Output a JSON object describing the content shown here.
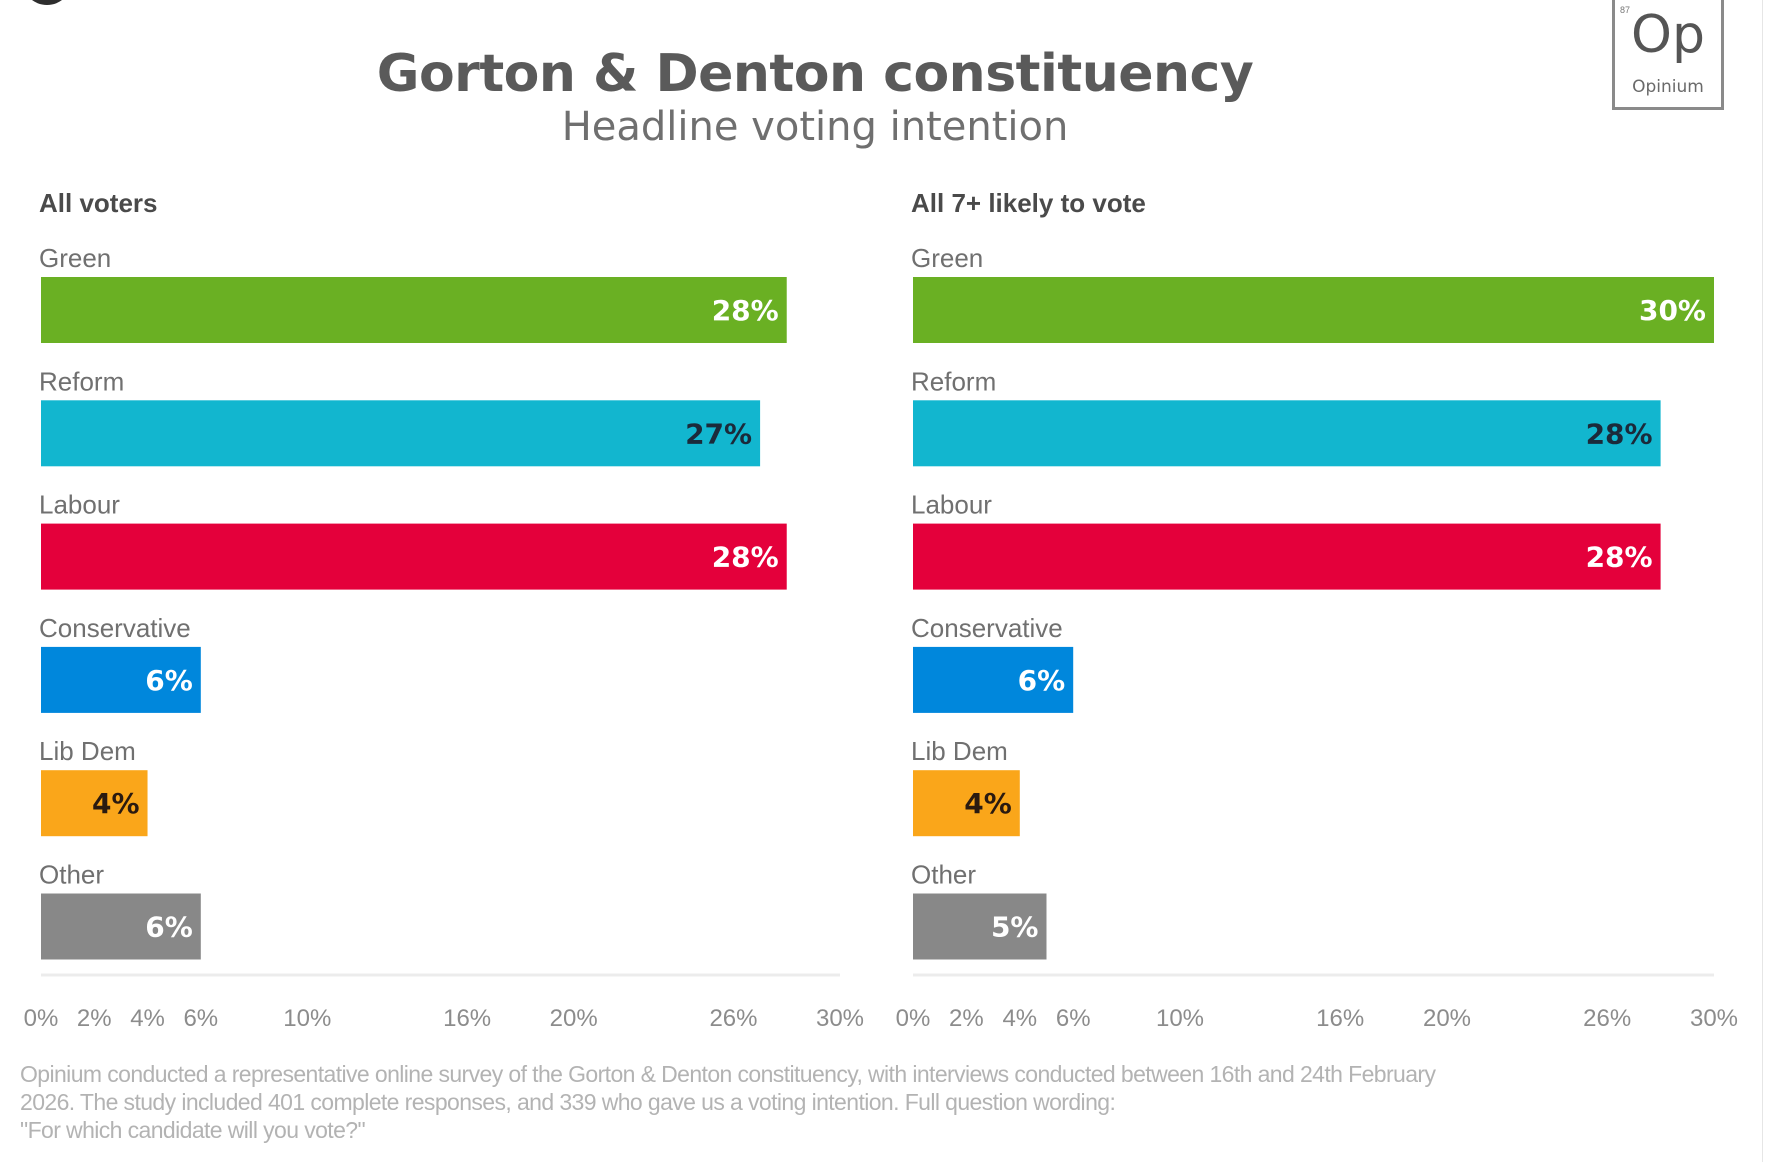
{
  "header": {
    "title": "Gorton & Denton constituency",
    "subtitle": "Headline voting intention"
  },
  "logo": {
    "mark": "Op",
    "name": "Opinium",
    "number": "87"
  },
  "footnote": {
    "lines": [
      "Opinium conducted a representative online survey of the Gorton & Denton constituency, with interviews conducted between 16th and 24th February",
      "2026. The study included 401 complete responses, and 339 who gave us a voting intention. Full question wording:",
      "\"For which candidate will you vote?\""
    ]
  },
  "chart_data": [
    {
      "type": "bar",
      "orientation": "horizontal",
      "title": "All voters",
      "categories": [
        "Green",
        "Reform",
        "Labour",
        "Conservative",
        "Lib Dem",
        "Other"
      ],
      "values": [
        28,
        27,
        28,
        6,
        4,
        6
      ],
      "value_labels": [
        "28%",
        "27%",
        "28%",
        "6%",
        "4%",
        "6%"
      ],
      "colors": [
        "#6ab023",
        "#12b6cf",
        "#e4003b",
        "#0087dc",
        "#faa61a",
        "#888888"
      ],
      "label_colors": [
        "#ffffff",
        "#1b2a3a",
        "#ffffff",
        "#ffffff",
        "#2a1a10",
        "#ffffff"
      ],
      "xlim": [
        0,
        30
      ],
      "xticks": [
        0,
        2,
        4,
        6,
        10,
        16,
        20,
        26,
        30
      ],
      "xtick_labels": [
        "0%",
        "2%",
        "4%",
        "6%",
        "10%",
        "16%",
        "20%",
        "26%",
        "30%"
      ],
      "xlabel": "",
      "ylabel": "",
      "grid": false
    },
    {
      "type": "bar",
      "orientation": "horizontal",
      "title": "All 7+ likely to vote",
      "categories": [
        "Green",
        "Reform",
        "Labour",
        "Conservative",
        "Lib Dem",
        "Other"
      ],
      "values": [
        30,
        28,
        28,
        6,
        4,
        5
      ],
      "value_labels": [
        "30%",
        "28%",
        "28%",
        "6%",
        "4%",
        "5%"
      ],
      "colors": [
        "#6ab023",
        "#12b6cf",
        "#e4003b",
        "#0087dc",
        "#faa61a",
        "#888888"
      ],
      "label_colors": [
        "#ffffff",
        "#1b2a3a",
        "#ffffff",
        "#ffffff",
        "#2a1a10",
        "#ffffff"
      ],
      "xlim": [
        0,
        30
      ],
      "xticks": [
        0,
        2,
        4,
        6,
        10,
        16,
        20,
        26,
        30
      ],
      "xtick_labels": [
        "0%",
        "2%",
        "4%",
        "6%",
        "10%",
        "16%",
        "20%",
        "26%",
        "30%"
      ],
      "xlabel": "",
      "ylabel": "",
      "grid": false
    }
  ]
}
